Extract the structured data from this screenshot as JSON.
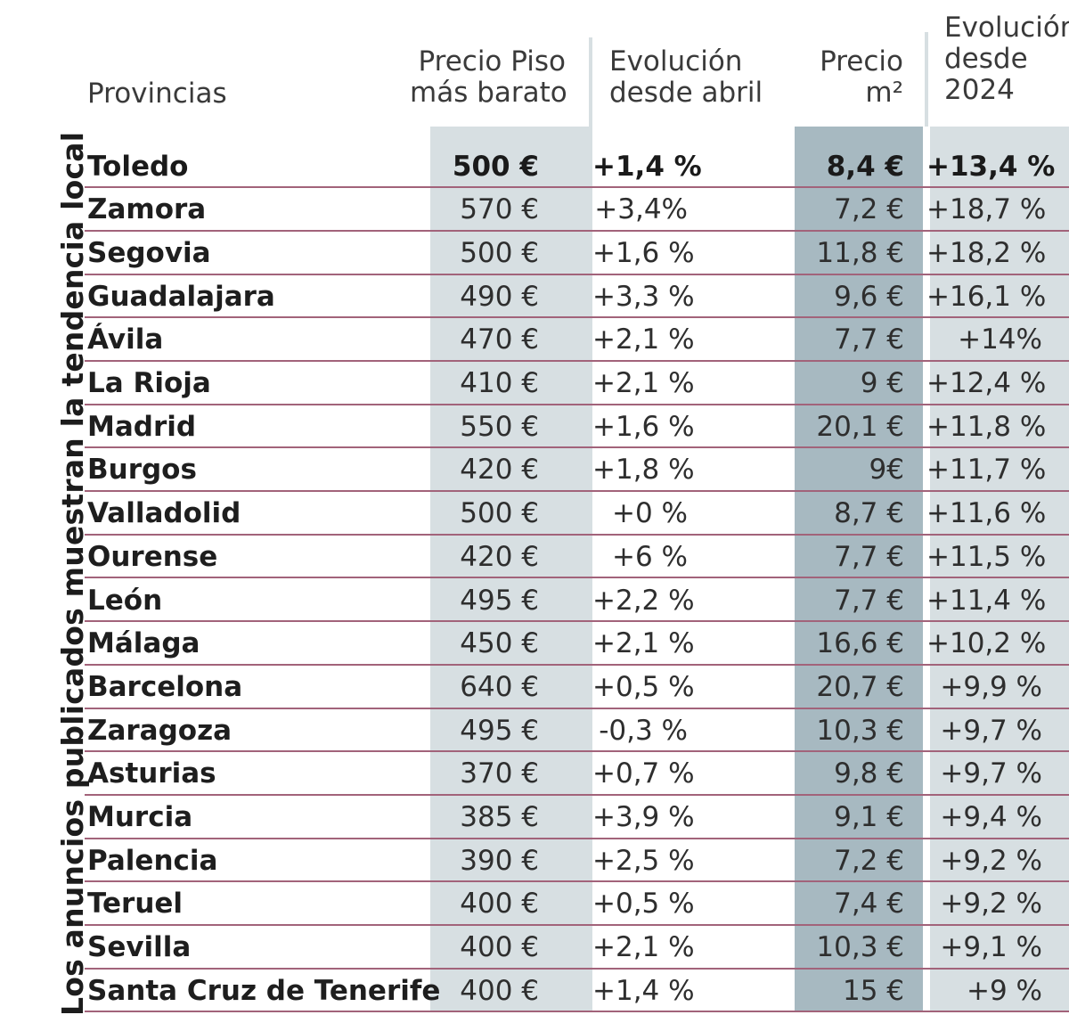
{
  "title": "Los anuncios publicados muestran la tendencia local",
  "headers": {
    "provincias": "Provincias",
    "precio_piso": "Precio Piso\nmás barato",
    "evolucion_abril": "Evolución\ndesde abril",
    "precio_m2": "Precio\nm²",
    "evolucion_2024": "Evolución\ndesde\n2024"
  },
  "rows": [
    {
      "provincia": "Toledo",
      "precio": "500 €",
      "evol_abril": "+1,4 %",
      "precio_m2": "8,4 €",
      "evol_2024": "+13,4 %"
    },
    {
      "provincia": "Zamora",
      "precio": "570 €",
      "evol_abril": "+3,4%",
      "precio_m2": "7,2 €",
      "evol_2024": "+18,7 %"
    },
    {
      "provincia": "Segovia",
      "precio": "500 €",
      "evol_abril": "+1,6 %",
      "precio_m2": "11,8 €",
      "evol_2024": "+18,2 %"
    },
    {
      "provincia": "Guadalajara",
      "precio": "490 €",
      "evol_abril": "+3,3 %",
      "precio_m2": "9,6 €",
      "evol_2024": "+16,1 %"
    },
    {
      "provincia": "Ávila",
      "precio": "470 €",
      "evol_abril": "+2,1 %",
      "precio_m2": "7,7 €",
      "evol_2024": "+14%"
    },
    {
      "provincia": "La Rioja",
      "precio": "410 €",
      "evol_abril": "+2,1 %",
      "precio_m2": "9 €",
      "evol_2024": "+12,4 %"
    },
    {
      "provincia": "Madrid",
      "precio": "550 €",
      "evol_abril": "+1,6 %",
      "precio_m2": "20,1 €",
      "evol_2024": "+11,8 %"
    },
    {
      "provincia": "Burgos",
      "precio": "420 €",
      "evol_abril": "+1,8 %",
      "precio_m2": "9€",
      "evol_2024": "+11,7 %"
    },
    {
      "provincia": "Valladolid",
      "precio": "500 €",
      "evol_abril": "+0 %",
      "precio_m2": "8,7 €",
      "evol_2024": "+11,6 %"
    },
    {
      "provincia": "Ourense",
      "precio": "420 €",
      "evol_abril": "+6 %",
      "precio_m2": "7,7 €",
      "evol_2024": "+11,5 %"
    },
    {
      "provincia": "León",
      "precio": "495 €",
      "evol_abril": "+2,2 %",
      "precio_m2": "7,7 €",
      "evol_2024": "+11,4 %"
    },
    {
      "provincia": "Málaga",
      "precio": "450 €",
      "evol_abril": "+2,1 %",
      "precio_m2": "16,6 €",
      "evol_2024": "+10,2 %"
    },
    {
      "provincia": "Barcelona",
      "precio": "640 €",
      "evol_abril": "+0,5 %",
      "precio_m2": "20,7 €",
      "evol_2024": "+9,9 %"
    },
    {
      "provincia": "Zaragoza",
      "precio": "495 €",
      "evol_abril": "-0,3 %",
      "precio_m2": "10,3 €",
      "evol_2024": "+9,7 %"
    },
    {
      "provincia": "Asturias",
      "precio": "370 €",
      "evol_abril": "+0,7 %",
      "precio_m2": "9,8 €",
      "evol_2024": "+9,7 %"
    },
    {
      "provincia": "Murcia",
      "precio": "385 €",
      "evol_abril": "+3,9 %",
      "precio_m2": "9,1 €",
      "evol_2024": "+9,4 %"
    },
    {
      "provincia": "Palencia",
      "precio": "390 €",
      "evol_abril": "+2,5 %",
      "precio_m2": "7,2 €",
      "evol_2024": "+9,2 %"
    },
    {
      "provincia": "Teruel",
      "precio": "400 €",
      "evol_abril": "+0,5 %",
      "precio_m2": "7,4 €",
      "evol_2024": "+9,2 %"
    },
    {
      "provincia": "Sevilla",
      "precio": "400 €",
      "evol_abril": "+2,1 %",
      "precio_m2": "10,3 €",
      "evol_2024": "+9,1 %"
    },
    {
      "provincia": "Santa Cruz de Tenerife",
      "precio": "400 €",
      "evol_abril": "+1,4 %",
      "precio_m2": "15 €",
      "evol_2024": "+9 %"
    }
  ]
}
